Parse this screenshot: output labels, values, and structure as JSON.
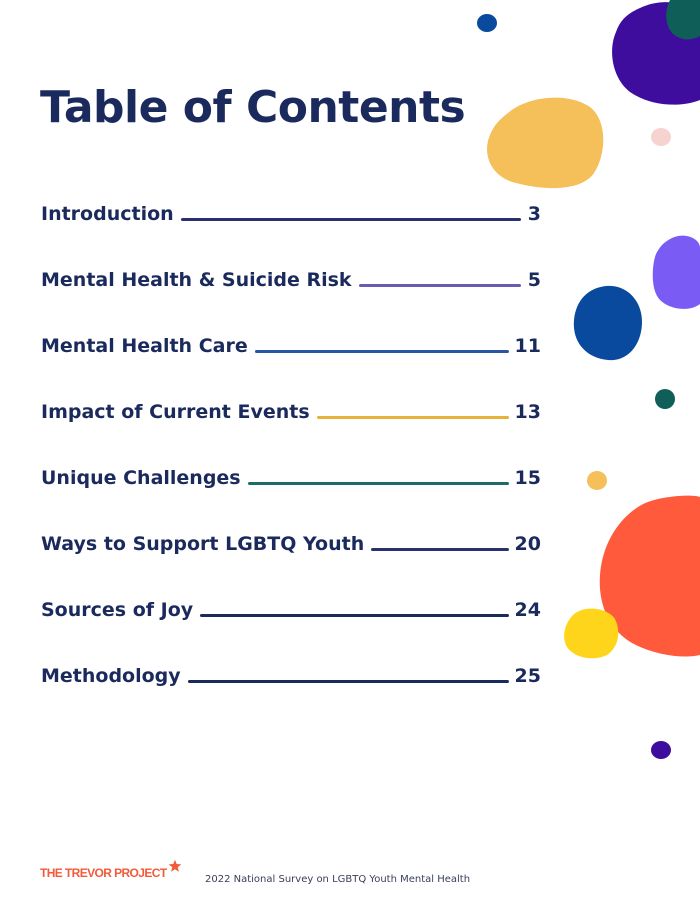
{
  "page": {
    "title": "Table of Contents"
  },
  "toc": {
    "entries": [
      {
        "label": "Introduction",
        "page": "3",
        "leader_color": "#2c2f6e"
      },
      {
        "label": "Mental Health & Suicide Risk",
        "page": "5",
        "leader_color": "#6b5bb0"
      },
      {
        "label": "Mental Health Care",
        "page": "11",
        "leader_color": "#2a55a3"
      },
      {
        "label": "Impact of Current Events",
        "page": "13",
        "leader_color": "#e6b23a"
      },
      {
        "label": "Unique Challenges",
        "page": "15",
        "leader_color": "#1f6a6a"
      },
      {
        "label": "Ways to Support LGBTQ Youth",
        "page": "20",
        "leader_color": "#2c2f6e"
      },
      {
        "label": "Sources of Joy",
        "page": "24",
        "leader_color": "#1b2a5c"
      },
      {
        "label": "Methodology",
        "page": "25",
        "leader_color": "#1b2a5c"
      }
    ]
  },
  "footer": {
    "logo_text": "THE TREVOR PROJECT",
    "report_title": "2022 National Survey on LGBTQ Youth Mental Health"
  },
  "colors": {
    "heading": "#1b2a5c",
    "brand_orange": "#f15a3a",
    "blob_purple": "#3f0d9e",
    "blob_teal": "#0f5f58",
    "blob_yellow": "#f5bf5a",
    "blob_pink": "#f6d3cf",
    "blob_lavender": "#7a5cf5",
    "blob_blue": "#0a4a9e",
    "blob_orange_red": "#ff5a3c",
    "blob_bright_yellow": "#ffd51c"
  }
}
